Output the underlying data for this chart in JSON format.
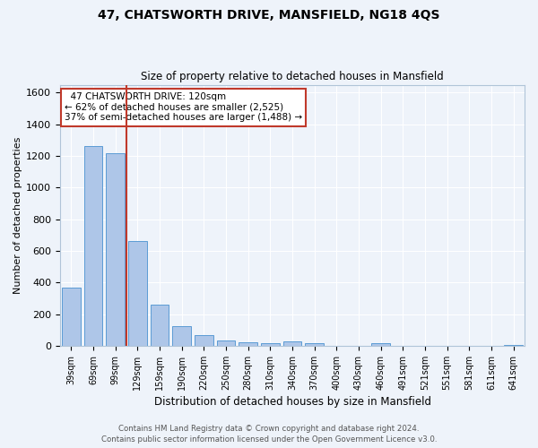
{
  "title": "47, CHATSWORTH DRIVE, MANSFIELD, NG18 4QS",
  "subtitle": "Size of property relative to detached houses in Mansfield",
  "xlabel": "Distribution of detached houses by size in Mansfield",
  "ylabel": "Number of detached properties",
  "footer_line1": "Contains HM Land Registry data © Crown copyright and database right 2024.",
  "footer_line2": "Contains public sector information licensed under the Open Government Licence v3.0.",
  "categories": [
    "39sqm",
    "69sqm",
    "99sqm",
    "129sqm",
    "159sqm",
    "190sqm",
    "220sqm",
    "250sqm",
    "280sqm",
    "310sqm",
    "340sqm",
    "370sqm",
    "400sqm",
    "430sqm",
    "460sqm",
    "491sqm",
    "521sqm",
    "551sqm",
    "581sqm",
    "611sqm",
    "641sqm"
  ],
  "values": [
    365,
    1265,
    1215,
    660,
    260,
    125,
    70,
    35,
    22,
    15,
    30,
    18,
    0,
    0,
    15,
    0,
    0,
    0,
    0,
    0,
    5
  ],
  "bar_color": "#aec6e8",
  "bar_edge_color": "#5b9bd5",
  "background_color": "#eef3fa",
  "grid_color": "#ffffff",
  "vline_color": "#c0392b",
  "annotation_text": "  47 CHATSWORTH DRIVE: 120sqm  \n← 62% of detached houses are smaller (2,525)\n37% of semi-detached houses are larger (1,488) →",
  "annotation_box_color": "#ffffff",
  "annotation_box_edge": "#c0392b",
  "ylim": [
    0,
    1650
  ],
  "yticks": [
    0,
    200,
    400,
    600,
    800,
    1000,
    1200,
    1400,
    1600
  ]
}
